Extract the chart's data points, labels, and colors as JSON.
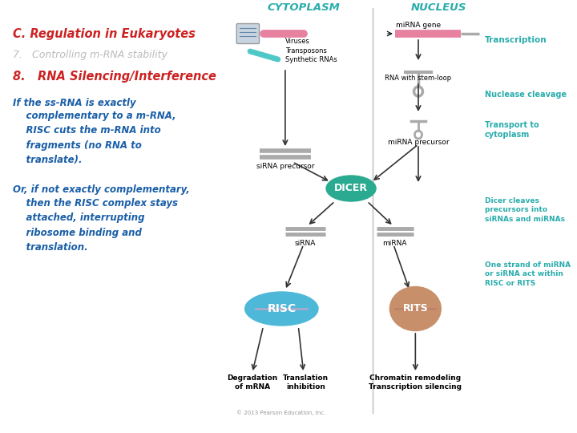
{
  "title_c": "C. Regulation in Eukaryotes",
  "title_c_color": "#cc2222",
  "item7": "7.   Controlling m-RNA stability",
  "item7_color": "#bbbbbb",
  "item8": "8.   RNA Silencing/Interference",
  "item8_color": "#cc2222",
  "para1_line1": "If the ss-RNA is exactly",
  "para1_rest": "    complementary to a m-RNA,\n    RISC cuts the m-RNA into\n    fragments (no RNA to\n    translate).",
  "para2_line1": "Or, if not exactly complementary,",
  "para2_rest": "    then the RISC complex stays\n    attached, interrupting\n    ribosome binding and\n    translation.",
  "body_color": "#1a5fa8",
  "cytoplasm_label": "CYTOPLASM",
  "nucleus_label": "NUCLEUS",
  "teal_label": "#2aacac",
  "dicer_color": "#2aaa90",
  "risc_color": "#4db8d8",
  "rits_color": "#c8906a",
  "arrow_color": "#333333",
  "stem_color": "#aaaaaa",
  "pink_color": "#e880a0",
  "cyan_color": "#50c8c8",
  "copyright": "© 2013 Pearson Education, Inc."
}
